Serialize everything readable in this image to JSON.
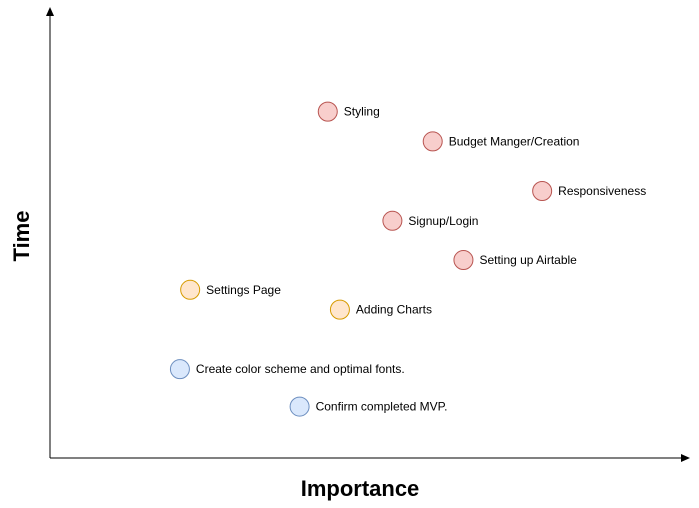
{
  "chart_data": {
    "type": "scatter",
    "title": "",
    "xlabel": "Importance",
    "ylabel": "Time",
    "xlim": [
      0,
      100
    ],
    "ylim": [
      0,
      100
    ],
    "grid": false,
    "category_colors": {
      "red": {
        "fill": "#f8cecc",
        "stroke": "#b85450"
      },
      "orange": {
        "fill": "#ffe6cc",
        "stroke": "#d79b00"
      },
      "blue": {
        "fill": "#dae8fc",
        "stroke": "#6c8ebf"
      }
    },
    "points": [
      {
        "label": "Styling",
        "x": 43.4,
        "y": 76.8,
        "color": "red"
      },
      {
        "label": "Budget Manger/Creation",
        "x": 59.8,
        "y": 70.2,
        "color": "red"
      },
      {
        "label": "Responsiveness",
        "x": 76.9,
        "y": 59.2,
        "color": "red"
      },
      {
        "label": "Signup/Login",
        "x": 53.5,
        "y": 52.6,
        "color": "red"
      },
      {
        "label": "Setting up Airtable",
        "x": 64.6,
        "y": 43.9,
        "color": "red"
      },
      {
        "label": "Settings Page",
        "x": 21.9,
        "y": 37.3,
        "color": "orange"
      },
      {
        "label": "Adding Charts",
        "x": 45.3,
        "y": 32.9,
        "color": "orange"
      },
      {
        "label": "Create color scheme and optimal fonts.",
        "x": 20.3,
        "y": 19.7,
        "color": "blue"
      },
      {
        "label": "Confirm completed MVP.",
        "x": 39.0,
        "y": 11.4,
        "color": "blue"
      }
    ]
  }
}
